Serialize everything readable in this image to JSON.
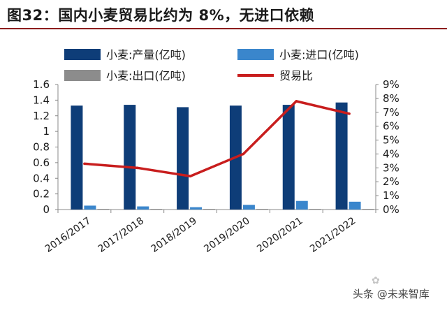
{
  "title": "图32：国内小麦贸易比约为 8%，无进口依赖",
  "watermark": "头条 @未来智库",
  "chart_data": {
    "type": "bar",
    "categories": [
      "2016/2017",
      "2017/2018",
      "2018/2019",
      "2019/2020",
      "2020/2021",
      "2021/2022"
    ],
    "series": [
      {
        "name": "小麦:产量(亿吨)",
        "type": "bar",
        "axis": "left",
        "color": "#0e3d78",
        "values": [
          1.33,
          1.34,
          1.31,
          1.33,
          1.34,
          1.37
        ]
      },
      {
        "name": "小麦:进口(亿吨)",
        "type": "bar",
        "axis": "left",
        "color": "#3a86cc",
        "values": [
          0.05,
          0.04,
          0.03,
          0.06,
          0.11,
          0.1
        ]
      },
      {
        "name": "小麦:出口(亿吨)",
        "type": "bar",
        "axis": "left",
        "color": "#8c8c8c",
        "values": [
          0.005,
          0.005,
          0.005,
          0.005,
          0.002,
          0.002
        ]
      },
      {
        "name": "贸易比",
        "type": "line",
        "axis": "right",
        "color": "#c81d1d",
        "values": [
          3.3,
          3.0,
          2.4,
          4.0,
          7.8,
          6.9
        ]
      }
    ],
    "y_left": {
      "min": 0,
      "max": 1.6,
      "ticks": [
        "0",
        "0.2",
        "0.4",
        "0.6",
        "0.8",
        "1",
        "1.2",
        "1.4",
        "1.6"
      ]
    },
    "y_right": {
      "min": 0,
      "max": 9,
      "ticks": [
        "0%",
        "1%",
        "2%",
        "3%",
        "4%",
        "5%",
        "6%",
        "7%",
        "8%",
        "9%"
      ]
    },
    "legend_position": "top",
    "grid": false
  }
}
